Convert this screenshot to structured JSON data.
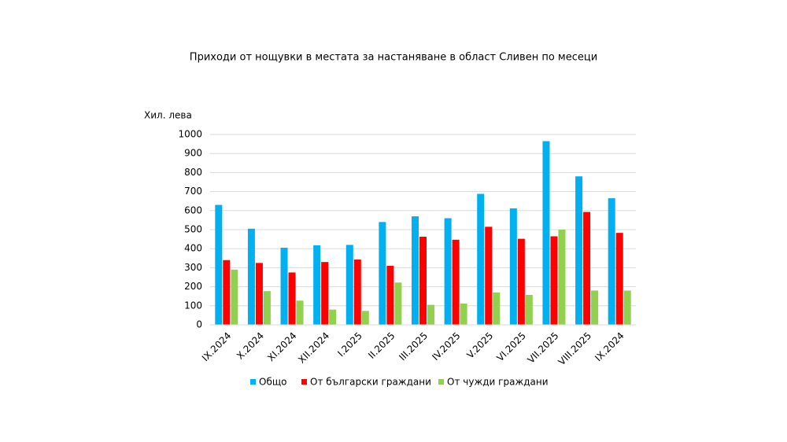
{
  "chart_data": {
    "type": "bar",
    "title": "Приходи от нощувки в местата за настаняване в област Сливен по месеци",
    "y_label": "Хил. лева",
    "categories": [
      "IX.2024",
      "X.2024",
      "XI.2024",
      "XII.2024",
      "I.2025",
      "II.2025",
      "III.2025",
      "IV.2025",
      "V.2025",
      "VI.2025",
      "VII.2025",
      "VIII.2025",
      "IX.2024"
    ],
    "series": [
      {
        "name": "Общо",
        "color": "#00b0f0",
        "values": [
          630,
          505,
          405,
          418,
          420,
          540,
          570,
          560,
          688,
          612,
          965,
          780,
          665
        ]
      },
      {
        "name": "От български граждани",
        "color": "#ff0000",
        "values": [
          340,
          325,
          275,
          330,
          343,
          310,
          463,
          447,
          515,
          452,
          465,
          593,
          483
        ]
      },
      {
        "name": "От чужди граждани",
        "color": "#92d050",
        "values": [
          290,
          177,
          127,
          80,
          73,
          222,
          105,
          112,
          170,
          157,
          500,
          180,
          180
        ]
      }
    ],
    "ylim": [
      0,
      1000
    ],
    "yticks": [
      0,
      100,
      200,
      300,
      400,
      500,
      600,
      700,
      800,
      900,
      1000
    ],
    "grid": true
  }
}
